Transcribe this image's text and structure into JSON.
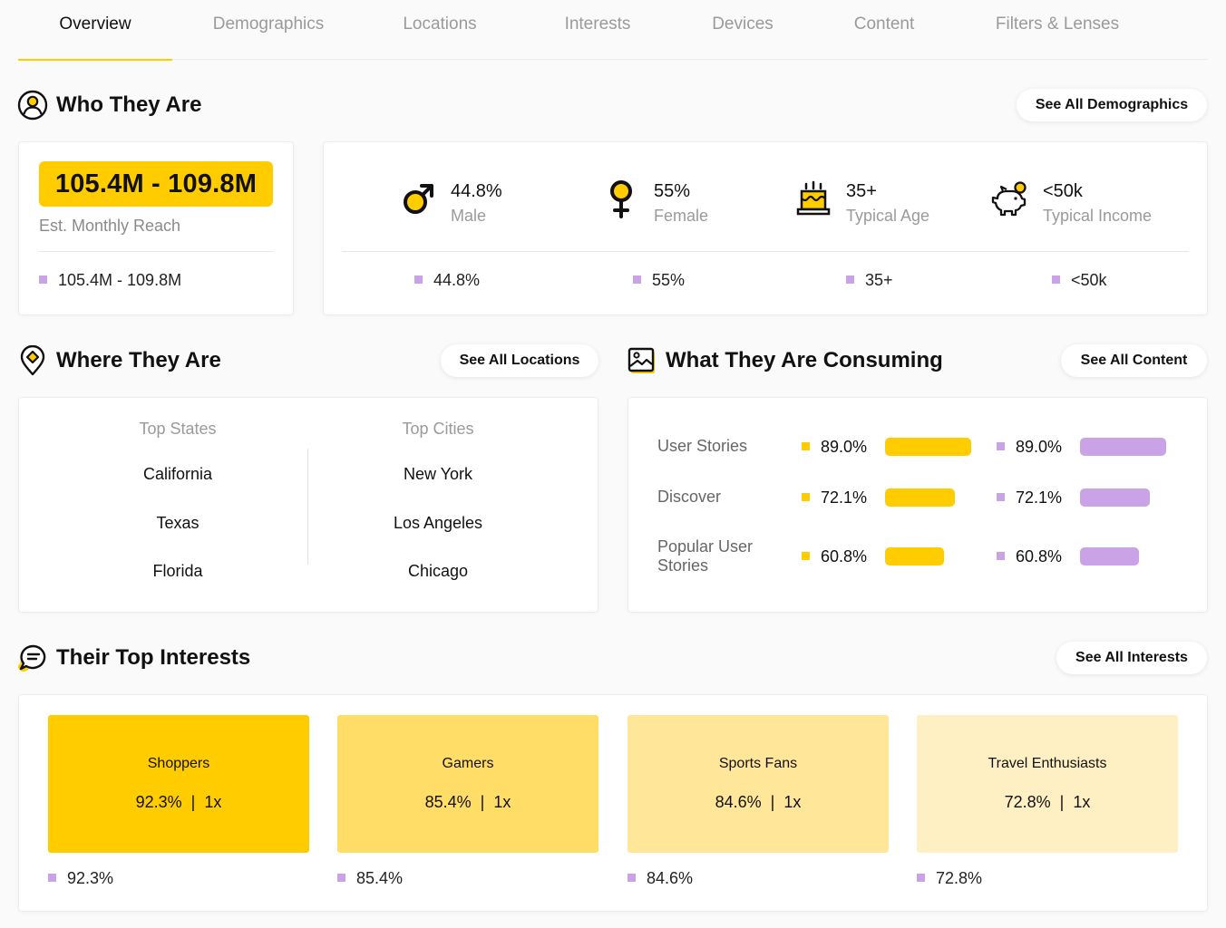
{
  "tabs": [
    {
      "label": "Overview"
    },
    {
      "label": "Demographics"
    },
    {
      "label": "Locations"
    },
    {
      "label": "Interests"
    },
    {
      "label": "Devices"
    },
    {
      "label": "Content"
    },
    {
      "label": "Filters & Lenses"
    }
  ],
  "who": {
    "title": "Who They Are",
    "button": "See All Demographics",
    "reach": {
      "value": "105.4M - 109.8M",
      "label": "Est. Monthly Reach",
      "footer": "105.4M - 109.8M"
    },
    "stats": [
      {
        "value": "44.8%",
        "label": "Male",
        "footer": "44.8%",
        "icon": "male-icon"
      },
      {
        "value": "55%",
        "label": "Female",
        "footer": "55%",
        "icon": "female-icon"
      },
      {
        "value": "35+",
        "label": "Typical Age",
        "footer": "35+",
        "icon": "birthday-cake-icon"
      },
      {
        "value": "<50k",
        "label": "Typical Income",
        "footer": "<50k",
        "icon": "piggy-bank-icon"
      }
    ]
  },
  "where": {
    "title": "Where They Are",
    "button": "See All Locations",
    "states_header": "Top States",
    "cities_header": "Top Cities",
    "states": [
      "California",
      "Texas",
      "Florida"
    ],
    "cities": [
      "New York",
      "Los Angeles",
      "Chicago"
    ]
  },
  "consuming": {
    "title": "What They Are Consuming",
    "button": "See All Content",
    "rows": [
      {
        "label": "User Stories",
        "value_a": "89.0%",
        "value_b": "89.0%",
        "pct": 89.0
      },
      {
        "label": "Discover",
        "value_a": "72.1%",
        "value_b": "72.1%",
        "pct": 72.1
      },
      {
        "label": "Popular User Stories",
        "value_a": "60.8%",
        "value_b": "60.8%",
        "pct": 60.8
      }
    ]
  },
  "interests": {
    "title": "Their Top Interests",
    "button": "See All Interests",
    "items": [
      {
        "name": "Shoppers",
        "pct": "92.3%",
        "index": "1x",
        "footer": "92.3%",
        "color": "#ffcc00"
      },
      {
        "name": "Gamers",
        "pct": "85.4%",
        "index": "1x",
        "footer": "85.4%",
        "color": "#ffdd66"
      },
      {
        "name": "Sports Fans",
        "pct": "84.6%",
        "index": "1x",
        "footer": "84.6%",
        "color": "#ffe699"
      },
      {
        "name": "Travel Enthusiasts",
        "pct": "72.8%",
        "index": "1x",
        "footer": "72.8%",
        "color": "#fff0c4"
      }
    ]
  },
  "colors": {
    "accent": "#ffcc00",
    "secondary": "#c9a3e6"
  }
}
